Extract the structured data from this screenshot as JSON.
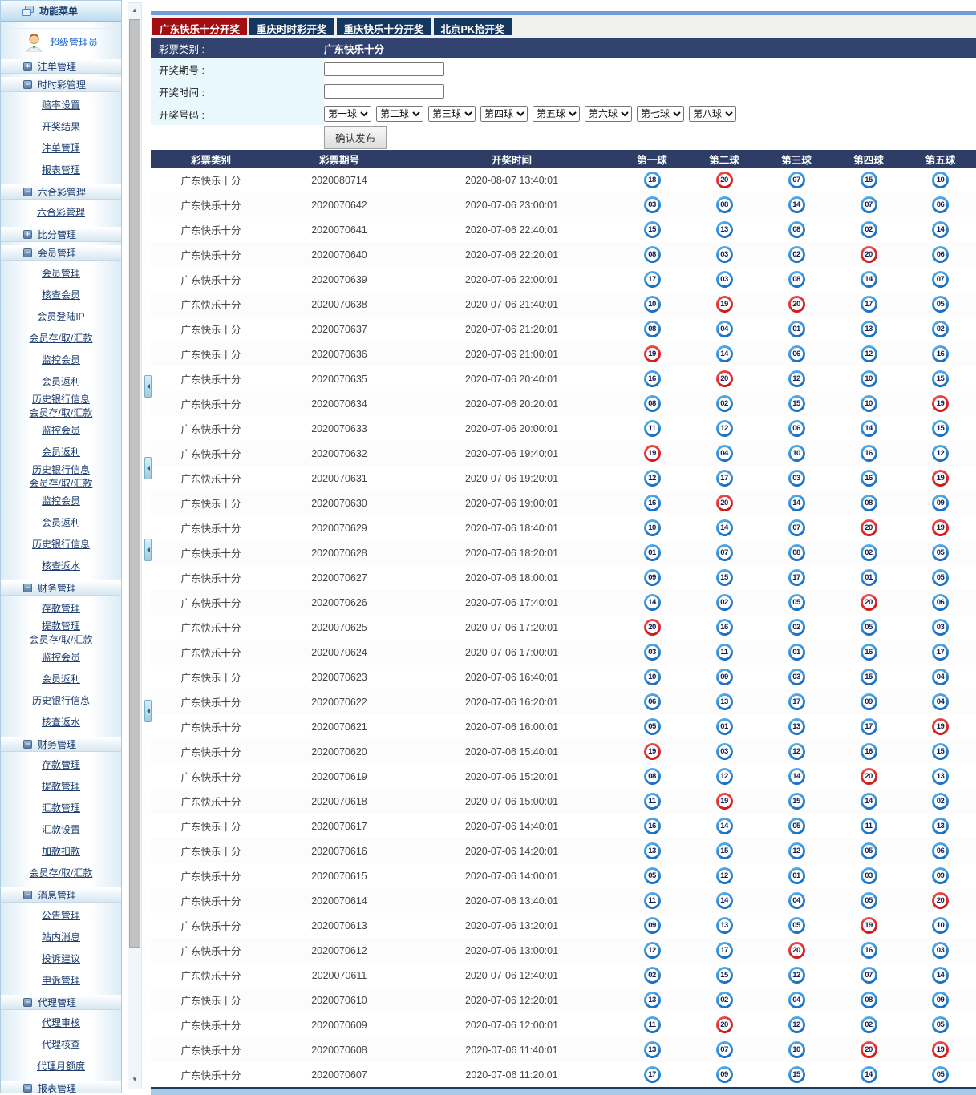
{
  "sidebar": {
    "header": "功能菜单",
    "user": "超级管理员",
    "items": [
      {
        "type": "group",
        "state": "plus",
        "label": "注单管理"
      },
      {
        "type": "group",
        "state": "minus",
        "label": "时时彩管理"
      },
      {
        "type": "link",
        "label": "赔率设置"
      },
      {
        "type": "link",
        "label": "开奖结果"
      },
      {
        "type": "link",
        "label": "注单管理"
      },
      {
        "type": "link",
        "label": "报表管理"
      },
      {
        "type": "group",
        "state": "minus",
        "label": "六合彩管理"
      },
      {
        "type": "link",
        "label": "六合彩管理"
      },
      {
        "type": "group",
        "state": "plus",
        "label": "比分管理"
      },
      {
        "type": "group",
        "state": "minus",
        "label": "会员管理"
      },
      {
        "type": "link",
        "label": "会员管理"
      },
      {
        "type": "link",
        "label": "核查会员"
      },
      {
        "type": "link",
        "label": "会员登陆IP"
      },
      {
        "type": "link",
        "label": "会员存/取/汇款"
      },
      {
        "type": "link",
        "label": "监控会员"
      },
      {
        "type": "link",
        "label": "会员返利"
      },
      {
        "type": "link",
        "tight": true,
        "label": "历史银行信息"
      },
      {
        "type": "link",
        "tight": true,
        "label": "会员存/取/汇款"
      },
      {
        "type": "link",
        "label": "监控会员"
      },
      {
        "type": "link",
        "label": "会员返利"
      },
      {
        "type": "link",
        "tight": true,
        "label": "历史银行信息"
      },
      {
        "type": "link",
        "tight": true,
        "label": "会员存/取/汇款"
      },
      {
        "type": "link",
        "label": "监控会员"
      },
      {
        "type": "link",
        "label": "会员返利"
      },
      {
        "type": "link",
        "label": "历史银行信息"
      },
      {
        "type": "link",
        "label": "核查返水"
      },
      {
        "type": "group",
        "state": "minus",
        "label": "财务管理"
      },
      {
        "type": "link",
        "label": "存款管理"
      },
      {
        "type": "link",
        "tight": true,
        "label": "提款管理"
      },
      {
        "type": "link",
        "tight": true,
        "label": "会员存/取/汇款"
      },
      {
        "type": "link",
        "label": "监控会员"
      },
      {
        "type": "link",
        "label": "会员返利"
      },
      {
        "type": "link",
        "label": "历史银行信息"
      },
      {
        "type": "link",
        "label": "核查返水"
      },
      {
        "type": "group",
        "state": "minus",
        "label": "财务管理"
      },
      {
        "type": "link",
        "label": "存款管理"
      },
      {
        "type": "link",
        "label": "提款管理"
      },
      {
        "type": "link",
        "label": "汇款管理"
      },
      {
        "type": "link",
        "label": "汇款设置"
      },
      {
        "type": "link",
        "label": "加款扣款"
      },
      {
        "type": "link",
        "label": "会员存/取/汇款"
      },
      {
        "type": "group",
        "state": "minus",
        "label": "消息管理"
      },
      {
        "type": "link",
        "label": "公告管理"
      },
      {
        "type": "link",
        "label": "站内消息"
      },
      {
        "type": "link",
        "label": "投诉建议"
      },
      {
        "type": "link",
        "label": "申诉管理"
      },
      {
        "type": "group",
        "state": "minus",
        "label": "代理管理"
      },
      {
        "type": "link",
        "label": "代理审核"
      },
      {
        "type": "link",
        "label": "代理核查"
      },
      {
        "type": "link",
        "label": "代理月额度"
      },
      {
        "type": "group",
        "state": "minus",
        "label": "报表管理"
      }
    ]
  },
  "tabs": [
    {
      "label": "广东快乐十分开奖",
      "active": true
    },
    {
      "label": "重庆时时彩开奖",
      "active": false
    },
    {
      "label": "重庆快乐十分开奖",
      "active": false
    },
    {
      "label": "北京PK拾开奖",
      "active": false
    }
  ],
  "form": {
    "category_label": "彩票类别 :",
    "category_value": "广东快乐十分",
    "period_label": "开奖期号 :",
    "time_label": "开奖时间 :",
    "numbers_label": "开奖号码 :",
    "ball_selects": [
      "第一球",
      "第二球",
      "第三球",
      "第四球",
      "第五球",
      "第六球",
      "第七球",
      "第八球"
    ],
    "submit_label": "确认发布"
  },
  "table": {
    "headers": [
      "彩票类别",
      "彩票期号",
      "开奖时间",
      "第一球",
      "第二球",
      "第三球",
      "第四球",
      "第五球"
    ],
    "red_balls": [
      "19",
      "20"
    ],
    "rows": [
      {
        "category": "广东快乐十分",
        "period": "2020080714",
        "time": "2020-08-07 13:40:01",
        "balls": [
          "18",
          "20",
          "07",
          "15",
          "10"
        ]
      },
      {
        "category": "广东快乐十分",
        "period": "2020070642",
        "time": "2020-07-06 23:00:01",
        "balls": [
          "03",
          "08",
          "14",
          "07",
          "06"
        ]
      },
      {
        "category": "广东快乐十分",
        "period": "2020070641",
        "time": "2020-07-06 22:40:01",
        "balls": [
          "15",
          "13",
          "08",
          "02",
          "14"
        ]
      },
      {
        "category": "广东快乐十分",
        "period": "2020070640",
        "time": "2020-07-06 22:20:01",
        "balls": [
          "08",
          "03",
          "02",
          "20",
          "06"
        ]
      },
      {
        "category": "广东快乐十分",
        "period": "2020070639",
        "time": "2020-07-06 22:00:01",
        "balls": [
          "17",
          "03",
          "08",
          "14",
          "07"
        ]
      },
      {
        "category": "广东快乐十分",
        "period": "2020070638",
        "time": "2020-07-06 21:40:01",
        "balls": [
          "10",
          "19",
          "20",
          "17",
          "05"
        ]
      },
      {
        "category": "广东快乐十分",
        "period": "2020070637",
        "time": "2020-07-06 21:20:01",
        "balls": [
          "08",
          "04",
          "01",
          "13",
          "02"
        ]
      },
      {
        "category": "广东快乐十分",
        "period": "2020070636",
        "time": "2020-07-06 21:00:01",
        "balls": [
          "19",
          "14",
          "06",
          "12",
          "16"
        ]
      },
      {
        "category": "广东快乐十分",
        "period": "2020070635",
        "time": "2020-07-06 20:40:01",
        "balls": [
          "16",
          "20",
          "12",
          "10",
          "15"
        ]
      },
      {
        "category": "广东快乐十分",
        "period": "2020070634",
        "time": "2020-07-06 20:20:01",
        "balls": [
          "08",
          "02",
          "15",
          "10",
          "19"
        ]
      },
      {
        "category": "广东快乐十分",
        "period": "2020070633",
        "time": "2020-07-06 20:00:01",
        "balls": [
          "11",
          "12",
          "06",
          "14",
          "15"
        ]
      },
      {
        "category": "广东快乐十分",
        "period": "2020070632",
        "time": "2020-07-06 19:40:01",
        "balls": [
          "19",
          "04",
          "10",
          "16",
          "12"
        ]
      },
      {
        "category": "广东快乐十分",
        "period": "2020070631",
        "time": "2020-07-06 19:20:01",
        "balls": [
          "12",
          "17",
          "03",
          "16",
          "19"
        ]
      },
      {
        "category": "广东快乐十分",
        "period": "2020070630",
        "time": "2020-07-06 19:00:01",
        "balls": [
          "16",
          "20",
          "14",
          "08",
          "09"
        ]
      },
      {
        "category": "广东快乐十分",
        "period": "2020070629",
        "time": "2020-07-06 18:40:01",
        "balls": [
          "10",
          "14",
          "07",
          "20",
          "19"
        ]
      },
      {
        "category": "广东快乐十分",
        "period": "2020070628",
        "time": "2020-07-06 18:20:01",
        "balls": [
          "01",
          "07",
          "08",
          "02",
          "05"
        ]
      },
      {
        "category": "广东快乐十分",
        "period": "2020070627",
        "time": "2020-07-06 18:00:01",
        "balls": [
          "09",
          "15",
          "17",
          "01",
          "05"
        ]
      },
      {
        "category": "广东快乐十分",
        "period": "2020070626",
        "time": "2020-07-06 17:40:01",
        "balls": [
          "14",
          "02",
          "05",
          "20",
          "06"
        ]
      },
      {
        "category": "广东快乐十分",
        "period": "2020070625",
        "time": "2020-07-06 17:20:01",
        "balls": [
          "20",
          "16",
          "02",
          "05",
          "03"
        ]
      },
      {
        "category": "广东快乐十分",
        "period": "2020070624",
        "time": "2020-07-06 17:00:01",
        "balls": [
          "03",
          "11",
          "01",
          "16",
          "17"
        ]
      },
      {
        "category": "广东快乐十分",
        "period": "2020070623",
        "time": "2020-07-06 16:40:01",
        "balls": [
          "10",
          "09",
          "03",
          "15",
          "04"
        ]
      },
      {
        "category": "广东快乐十分",
        "period": "2020070622",
        "time": "2020-07-06 16:20:01",
        "balls": [
          "06",
          "13",
          "17",
          "09",
          "04"
        ]
      },
      {
        "category": "广东快乐十分",
        "period": "2020070621",
        "time": "2020-07-06 16:00:01",
        "balls": [
          "05",
          "01",
          "13",
          "17",
          "19"
        ]
      },
      {
        "category": "广东快乐十分",
        "period": "2020070620",
        "time": "2020-07-06 15:40:01",
        "balls": [
          "19",
          "03",
          "12",
          "16",
          "15"
        ]
      },
      {
        "category": "广东快乐十分",
        "period": "2020070619",
        "time": "2020-07-06 15:20:01",
        "balls": [
          "08",
          "12",
          "14",
          "20",
          "13"
        ]
      },
      {
        "category": "广东快乐十分",
        "period": "2020070618",
        "time": "2020-07-06 15:00:01",
        "balls": [
          "11",
          "19",
          "15",
          "14",
          "02"
        ]
      },
      {
        "category": "广东快乐十分",
        "period": "2020070617",
        "time": "2020-07-06 14:40:01",
        "balls": [
          "16",
          "14",
          "05",
          "11",
          "13"
        ]
      },
      {
        "category": "广东快乐十分",
        "period": "2020070616",
        "time": "2020-07-06 14:20:01",
        "balls": [
          "13",
          "15",
          "12",
          "05",
          "06"
        ]
      },
      {
        "category": "广东快乐十分",
        "period": "2020070615",
        "time": "2020-07-06 14:00:01",
        "balls": [
          "05",
          "12",
          "01",
          "03",
          "09"
        ]
      },
      {
        "category": "广东快乐十分",
        "period": "2020070614",
        "time": "2020-07-06 13:40:01",
        "balls": [
          "11",
          "14",
          "04",
          "05",
          "20"
        ]
      },
      {
        "category": "广东快乐十分",
        "period": "2020070613",
        "time": "2020-07-06 13:20:01",
        "balls": [
          "09",
          "13",
          "05",
          "19",
          "10"
        ]
      },
      {
        "category": "广东快乐十分",
        "period": "2020070612",
        "time": "2020-07-06 13:00:01",
        "balls": [
          "12",
          "17",
          "20",
          "16",
          "03"
        ]
      },
      {
        "category": "广东快乐十分",
        "period": "2020070611",
        "time": "2020-07-06 12:40:01",
        "balls": [
          "02",
          "15",
          "12",
          "07",
          "14"
        ]
      },
      {
        "category": "广东快乐十分",
        "period": "2020070610",
        "time": "2020-07-06 12:20:01",
        "balls": [
          "13",
          "02",
          "04",
          "08",
          "09"
        ]
      },
      {
        "category": "广东快乐十分",
        "period": "2020070609",
        "time": "2020-07-06 12:00:01",
        "balls": [
          "11",
          "20",
          "12",
          "02",
          "05"
        ]
      },
      {
        "category": "广东快乐十分",
        "period": "2020070608",
        "time": "2020-07-06 11:40:01",
        "balls": [
          "13",
          "07",
          "10",
          "20",
          "19"
        ]
      },
      {
        "category": "广东快乐十分",
        "period": "2020070607",
        "time": "2020-07-06 11:20:01",
        "balls": [
          "17",
          "09",
          "15",
          "14",
          "05"
        ]
      }
    ]
  },
  "colors": {
    "active_tab": "#a20d11",
    "inactive_tab": "#15365e",
    "form_header": "#31426e",
    "table_header": "#2e3d66",
    "ball_blue": "#0c63ba",
    "ball_red": "#c90f0f",
    "top_strip": "#6d9ed6"
  }
}
